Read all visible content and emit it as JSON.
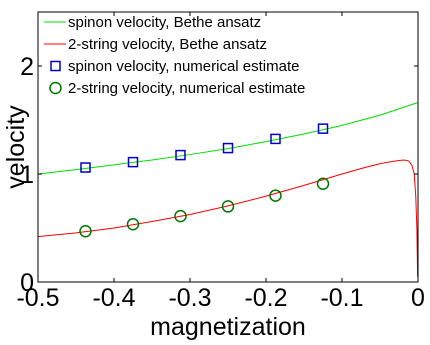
{
  "chart_data": {
    "type": "line",
    "xlabel": "magnetization",
    "ylabel": "velocity",
    "xlim": [
      -0.5,
      0
    ],
    "ylim": [
      0,
      2.5
    ],
    "xticks": [
      -0.5,
      -0.4,
      -0.3,
      -0.2,
      -0.1,
      0
    ],
    "xtick_labels": [
      "-0.5",
      "-0.4",
      "-0.3",
      "-0.2",
      "-0.1",
      "0"
    ],
    "yticks": [
      0,
      1,
      2
    ],
    "ytick_labels": [
      "0",
      "1",
      "2"
    ],
    "grid": false,
    "legend_position": "top-left",
    "series": [
      {
        "name": "spinon velocity, Bethe ansatz",
        "kind": "line",
        "color": "#00dd00",
        "x": [
          -0.5,
          -0.45,
          -0.4,
          -0.35,
          -0.3,
          -0.25,
          -0.2,
          -0.15,
          -0.1,
          -0.05,
          -0.001
        ],
        "y": [
          1.0,
          1.04,
          1.085,
          1.13,
          1.18,
          1.235,
          1.3,
          1.37,
          1.45,
          1.545,
          1.66
        ]
      },
      {
        "name": "2-string velocity, Bethe ansatz",
        "kind": "line",
        "color": "#ff0000",
        "x": [
          -0.5,
          -0.45,
          -0.4,
          -0.35,
          -0.3,
          -0.25,
          -0.2,
          -0.15,
          -0.1,
          -0.07,
          -0.05,
          -0.035,
          -0.025,
          -0.018,
          -0.012,
          -0.008,
          -0.005,
          -0.003,
          -0.0015,
          -0.0005
        ],
        "y": [
          0.42,
          0.455,
          0.5,
          0.56,
          0.625,
          0.705,
          0.795,
          0.895,
          1.0,
          1.06,
          1.095,
          1.115,
          1.125,
          1.13,
          1.12,
          1.08,
          1.0,
          0.8,
          0.5,
          0.05
        ]
      },
      {
        "name": "spinon velocity, numerical estimate",
        "kind": "marker",
        "marker": "square",
        "color": "#0000cc",
        "x": [
          -0.4375,
          -0.375,
          -0.3125,
          -0.25,
          -0.1875,
          -0.125
        ],
        "y": [
          1.06,
          1.11,
          1.175,
          1.24,
          1.325,
          1.42
        ]
      },
      {
        "name": "2-string velocity, numerical estimate",
        "kind": "marker",
        "marker": "circle",
        "color": "#007700",
        "x": [
          -0.4375,
          -0.375,
          -0.3125,
          -0.25,
          -0.1875,
          -0.125
        ],
        "y": [
          0.47,
          0.535,
          0.61,
          0.7,
          0.8,
          0.91
        ]
      }
    ]
  }
}
